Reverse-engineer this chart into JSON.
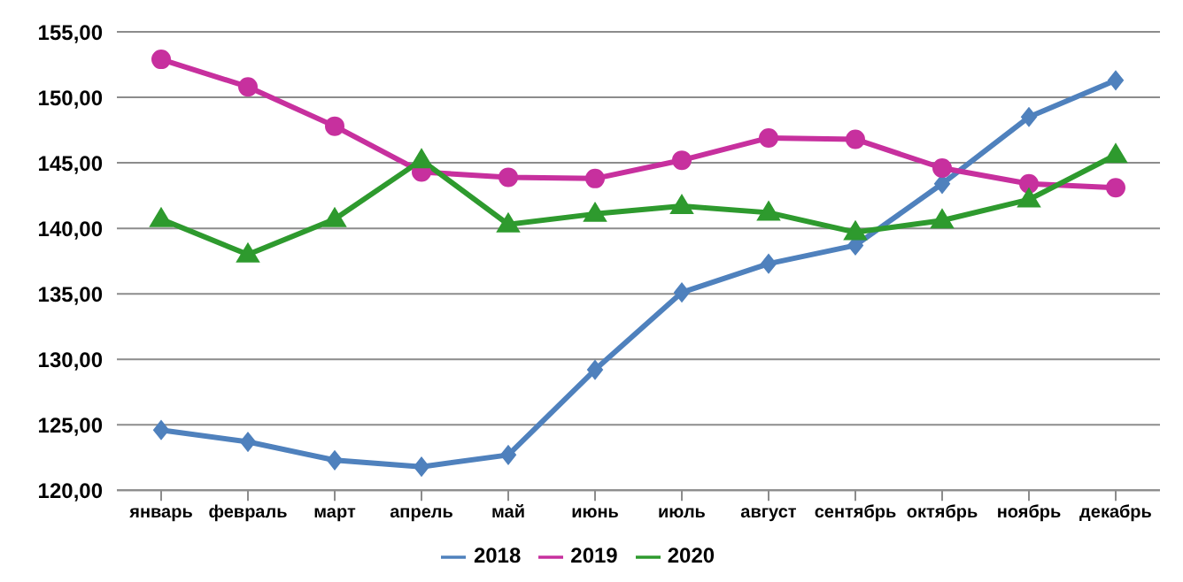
{
  "chart_data": {
    "type": "line",
    "categories": [
      "январь",
      "февраль",
      "март",
      "апрель",
      "май",
      "июнь",
      "июль",
      "август",
      "сентябрь",
      "октябрь",
      "ноябрь",
      "декабрь"
    ],
    "series": [
      {
        "name": "2018",
        "color": "#4f81bd",
        "marker": "diamond",
        "values": [
          124.6,
          123.7,
          122.3,
          121.8,
          122.7,
          129.2,
          135.1,
          137.3,
          138.7,
          143.4,
          148.5,
          151.3
        ]
      },
      {
        "name": "2019",
        "color": "#c7309e",
        "marker": "circle",
        "values": [
          152.9,
          150.8,
          147.8,
          144.3,
          143.9,
          143.8,
          145.2,
          146.9,
          146.8,
          144.6,
          143.4,
          143.1
        ]
      },
      {
        "name": "2020",
        "color": "#2e9a2e",
        "marker": "triangle",
        "values": [
          140.7,
          138.0,
          140.7,
          145.2,
          140.3,
          141.1,
          141.7,
          141.2,
          139.7,
          140.6,
          142.2,
          145.6
        ]
      }
    ],
    "ylim": [
      120,
      155
    ],
    "yticks": [
      {
        "value": 120,
        "label": "120,00"
      },
      {
        "value": 125,
        "label": "125,00"
      },
      {
        "value": 130,
        "label": "130,00"
      },
      {
        "value": 135,
        "label": "135,00"
      },
      {
        "value": 140,
        "label": "140,00"
      },
      {
        "value": 145,
        "label": "145,00"
      },
      {
        "value": 150,
        "label": "150,00"
      },
      {
        "value": 155,
        "label": "155,00"
      }
    ],
    "grid": "y",
    "legend": "bottom"
  }
}
